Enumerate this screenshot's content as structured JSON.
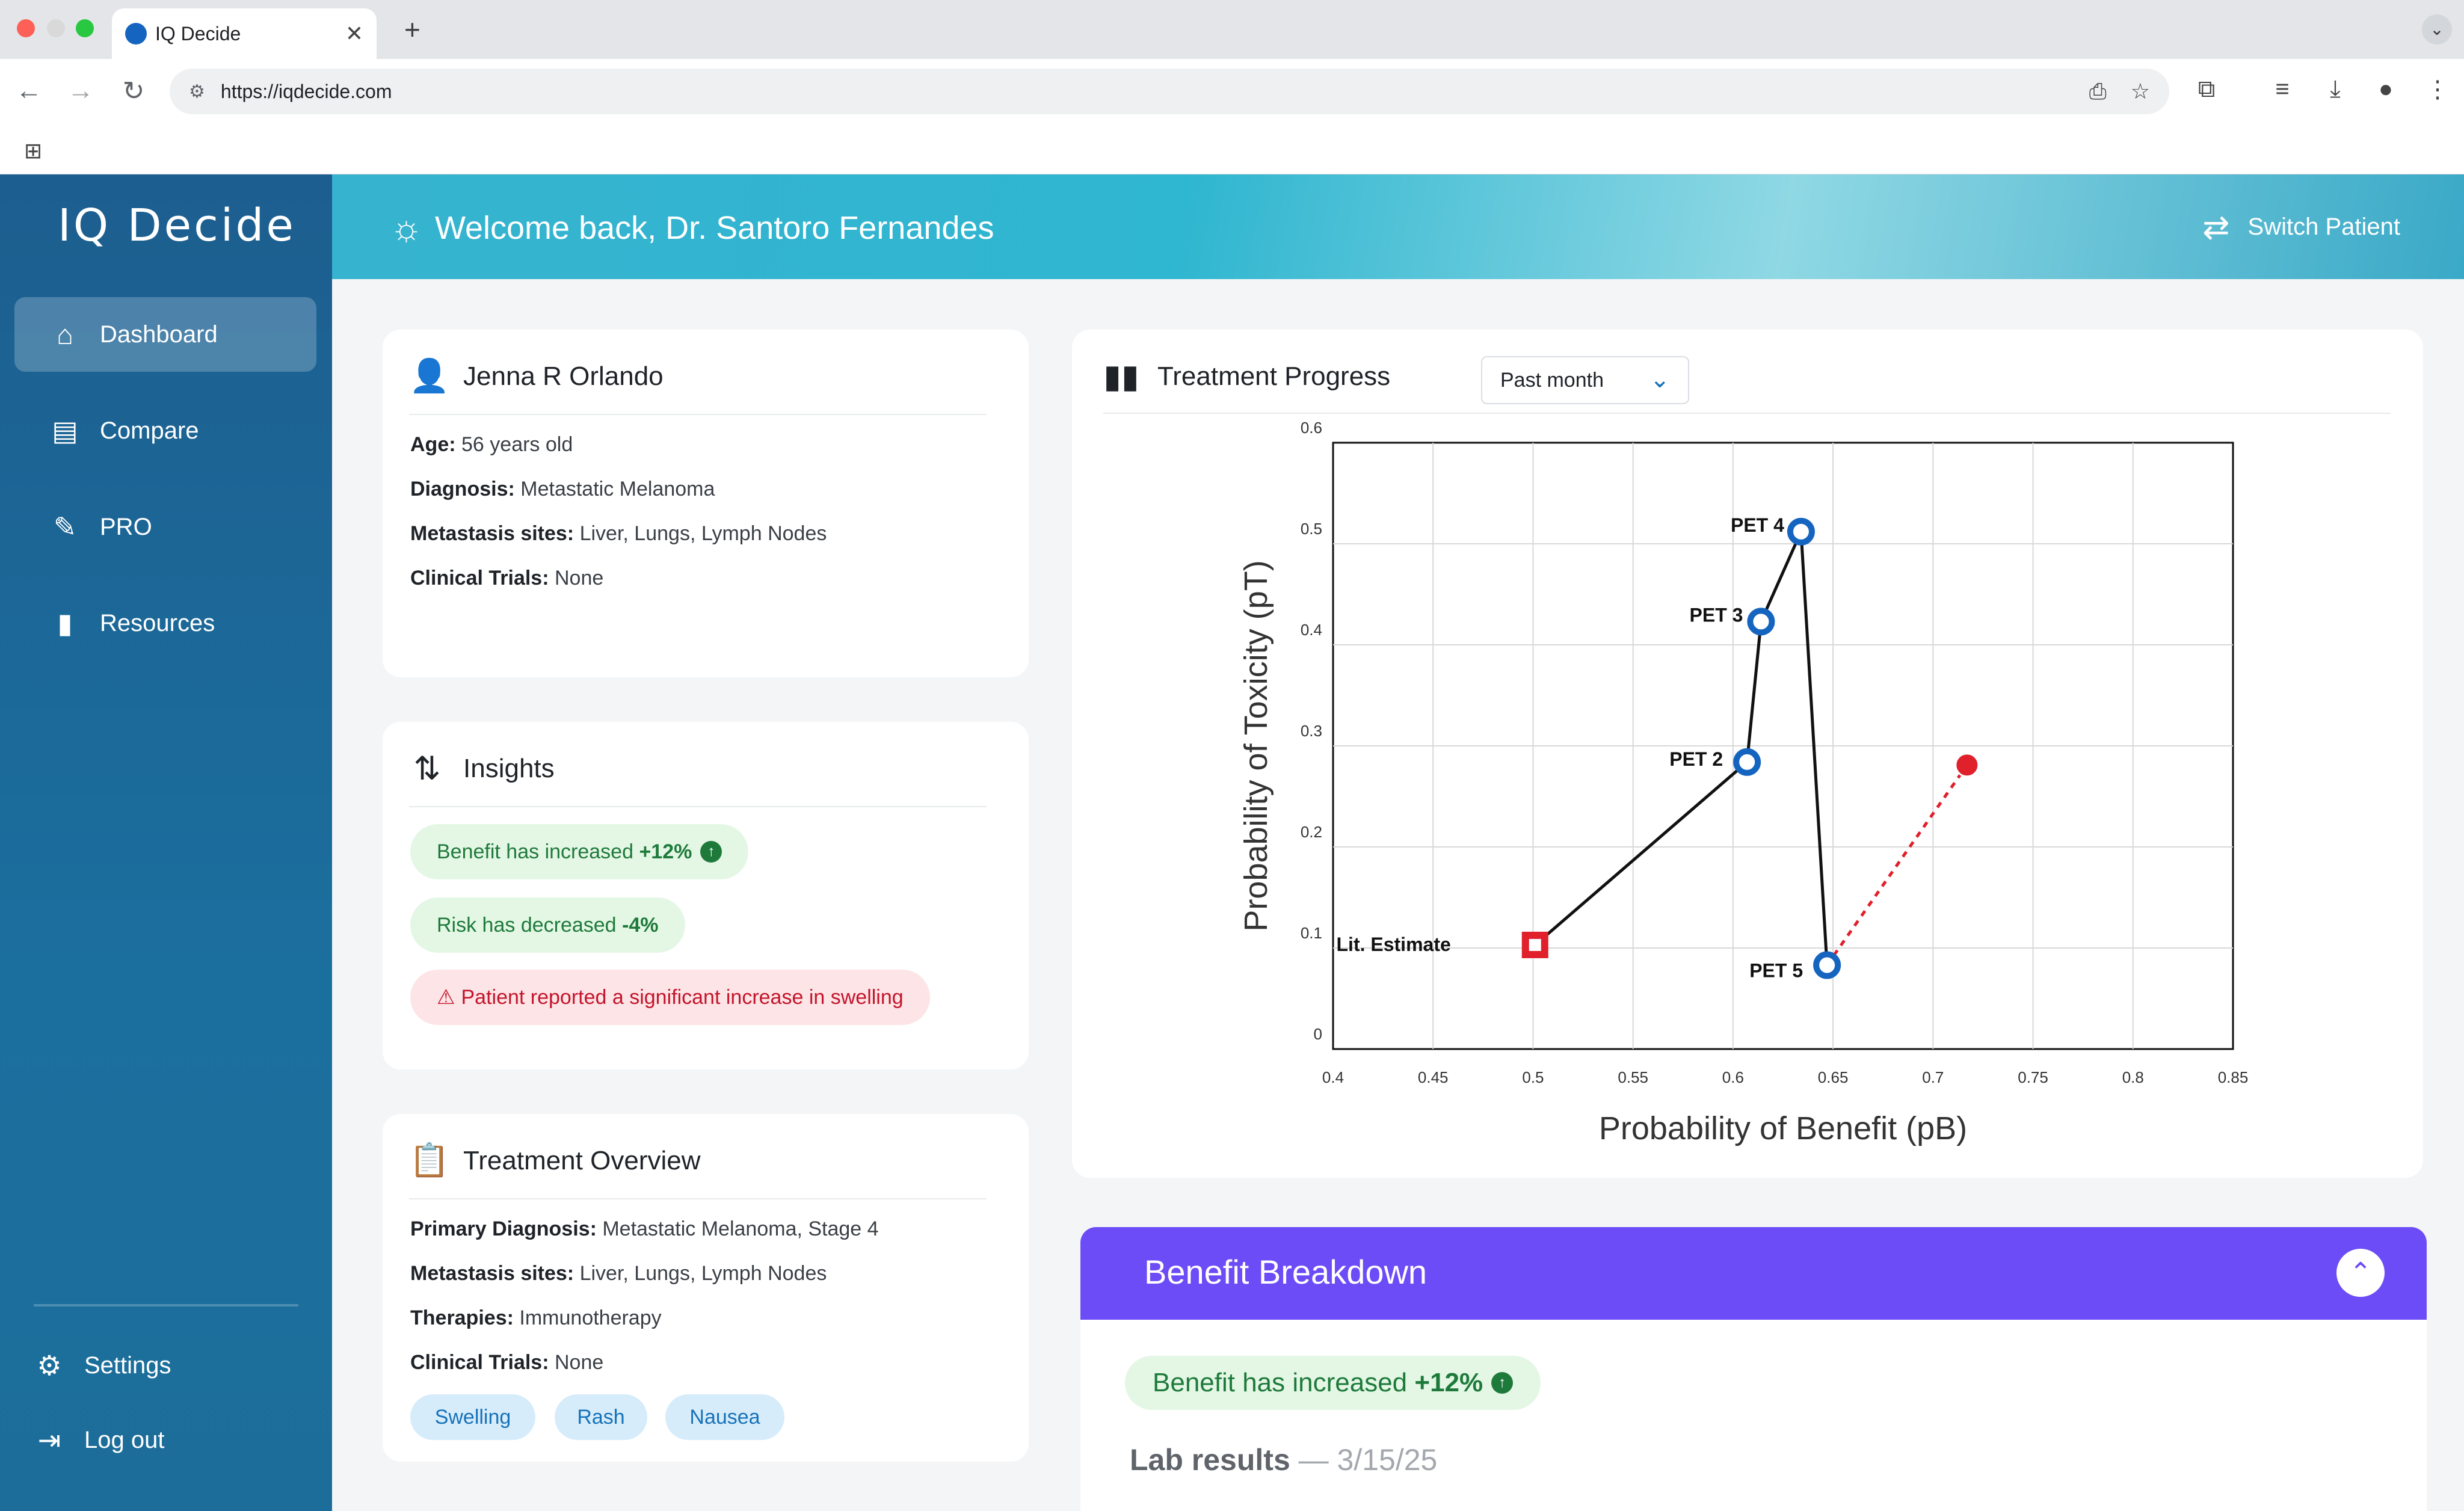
{
  "browser": {
    "tab_title": "IQ Decide",
    "url": "https://iqdecide.com"
  },
  "app": {
    "logo": "IQ Decide",
    "header": {
      "welcome": "Welcome back, Dr. Santoro Fernandes",
      "switch_label": "Switch Patient"
    }
  },
  "sidebar": {
    "items": [
      {
        "label": "Dashboard",
        "icon": "home-icon",
        "active": true
      },
      {
        "label": "Compare",
        "icon": "compare-icon",
        "active": false
      },
      {
        "label": "PRO",
        "icon": "document-edit-icon",
        "active": false
      },
      {
        "label": "Resources",
        "icon": "bookmark-icon",
        "active": false
      }
    ],
    "bottom": [
      {
        "label": "Settings",
        "icon": "gear-icon"
      },
      {
        "label": "Log out",
        "icon": "logout-icon"
      }
    ]
  },
  "patient": {
    "name": "Jenna R Orlando",
    "fields": [
      {
        "label": "Age:",
        "value": "56 years old"
      },
      {
        "label": "Diagnosis:",
        "value": "Metastatic Melanoma"
      },
      {
        "label": "Metastasis sites:",
        "value": "Liver, Lungs, Lymph Nodes"
      },
      {
        "label": "Clinical Trials:",
        "value": "None"
      }
    ]
  },
  "insights": {
    "title": "Insights",
    "benefit_text": "Benefit has increased ",
    "benefit_value": "+12%",
    "risk_text": "Risk has decreased ",
    "risk_value": "-4%",
    "warning": "Patient reported a significant increase in swelling"
  },
  "overview": {
    "title": "Treatment Overview",
    "fields": [
      {
        "label": "Primary Diagnosis:",
        "value": "Metastatic Melanoma, Stage 4"
      },
      {
        "label": "Metastasis sites:",
        "value": "Liver, Lungs, Lymph Nodes"
      },
      {
        "label": "Therapies:",
        "value": "Immunotherapy"
      },
      {
        "label": "Clinical Trials:",
        "value": "None"
      }
    ],
    "tags": [
      "Swelling",
      "Rash",
      "Nausea"
    ]
  },
  "progress": {
    "title": "Treatment Progress",
    "range_selected": "Past month"
  },
  "chart_data": {
    "type": "line",
    "xlabel": "Probability of Benefit (pB)",
    "ylabel": "Probability of Toxicity (pT)",
    "xlim": [
      0.4,
      0.85
    ],
    "ylim": [
      0,
      0.6
    ],
    "xticks": [
      "0.4",
      "0.45",
      "0.5",
      "0.55",
      "0.6",
      "0.65",
      "0.7",
      "0.75",
      "0.8",
      "0.85"
    ],
    "yticks": [
      "0",
      "0.1",
      "0.2",
      "0.3",
      "0.4",
      "0.5",
      "0.6"
    ],
    "grid": true,
    "points": [
      {
        "label": "Lit. Estimate",
        "x": 0.501,
        "y": 0.103,
        "marker": "square"
      },
      {
        "label": "PET 2",
        "x": 0.607,
        "y": 0.284,
        "marker": "circle"
      },
      {
        "label": "PET 3",
        "x": 0.614,
        "y": 0.423,
        "marker": "circle"
      },
      {
        "label": "PET 4",
        "x": 0.634,
        "y": 0.512,
        "marker": "circle"
      },
      {
        "label": "PET 5",
        "x": 0.647,
        "y": 0.083,
        "marker": "circle"
      }
    ],
    "projection": {
      "from": "PET 5",
      "x": 0.717,
      "y": 0.281,
      "style": "dashed"
    },
    "colors": {
      "path": "#111111",
      "point": "#1565c0",
      "estimate": "#e0202a",
      "projection": "#e0202a"
    }
  },
  "benefit_breakdown": {
    "title": "Benefit Breakdown",
    "pill_text": "Benefit has increased ",
    "pill_value": "+12%",
    "lab_label": "Lab results",
    "lab_date": "— 3/15/25"
  }
}
